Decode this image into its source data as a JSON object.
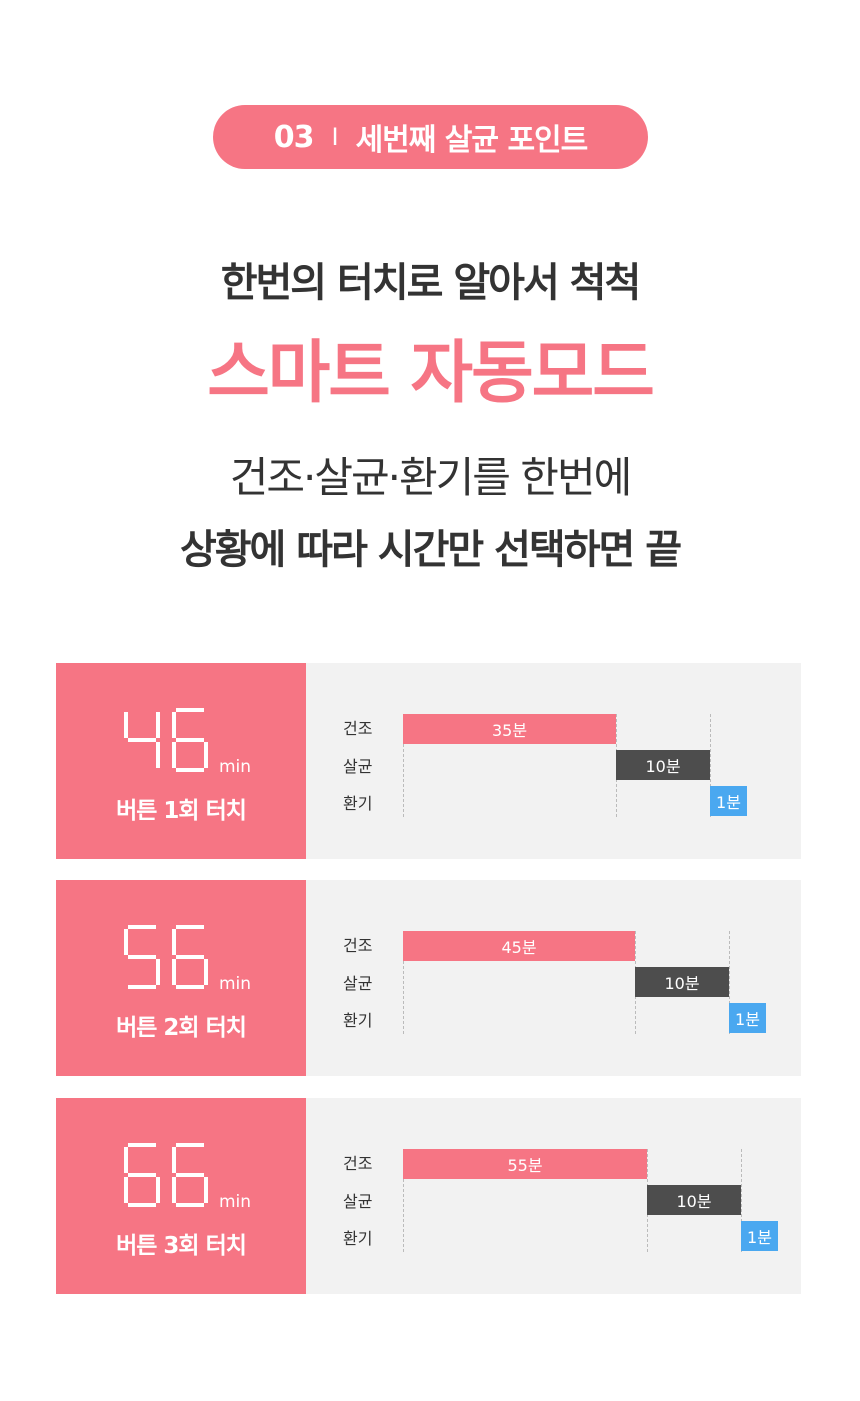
{
  "badge": {
    "number": "03",
    "separator": "I",
    "title": "세번째 살균 포인트"
  },
  "headline": {
    "line1": "한번의 터치로 알아서 척척",
    "line2": "스마트 자동모드",
    "line3": "건조·살균·환기를 한번에",
    "line4": "상황에 따라 시간만 선택하면 끝"
  },
  "colors": {
    "accent": "#f67584",
    "dry": "#f67584",
    "sterilize": "#4d4d4d",
    "ventilate": "#4aa8f0",
    "panel_bg": "#f2f2f2"
  },
  "modes": [
    {
      "total": "46",
      "unit": "min",
      "touch": "버튼 1회 터치",
      "labels": [
        "건조",
        "살균",
        "환기"
      ],
      "steps": [
        {
          "minutes": 35,
          "label": "35분"
        },
        {
          "minutes": 10,
          "label": "10분"
        },
        {
          "minutes": 1,
          "label": "1분"
        }
      ]
    },
    {
      "total": "56",
      "unit": "min",
      "touch": "버튼 2회 터치",
      "labels": [
        "건조",
        "살균",
        "환기"
      ],
      "steps": [
        {
          "minutes": 45,
          "label": "45분"
        },
        {
          "minutes": 10,
          "label": "10분"
        },
        {
          "minutes": 1,
          "label": "1분"
        }
      ]
    },
    {
      "total": "66",
      "unit": "min",
      "touch": "버튼 3회 터치",
      "labels": [
        "건조",
        "살균",
        "환기"
      ],
      "steps": [
        {
          "minutes": 55,
          "label": "55분"
        },
        {
          "minutes": 10,
          "label": "10분"
        },
        {
          "minutes": 1,
          "label": "1분"
        }
      ]
    }
  ]
}
